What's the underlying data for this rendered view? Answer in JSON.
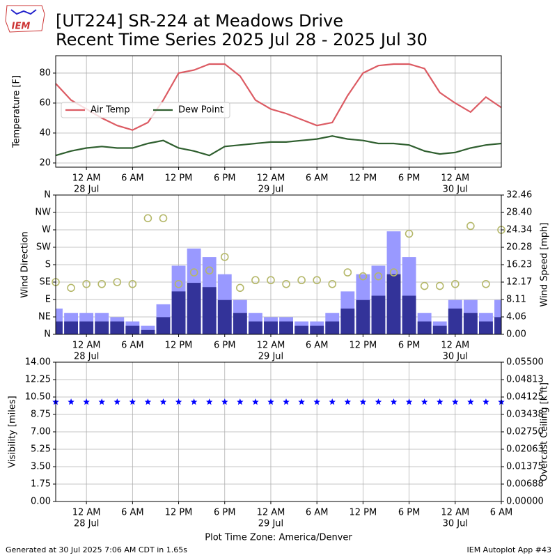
{
  "header": {
    "logo": "IEM",
    "title": "[UT224] SR-224 at Meadows Drive",
    "subtitle": "Recent Time Series 2025 Jul 28 - 2025 Jul 30"
  },
  "footer": {
    "left": "Generated at 30 Jul 2025 7:06 AM CDT in 1.65s",
    "right": "IEM Autoplot App #43"
  },
  "chart_data": [
    {
      "type": "line",
      "ylabel": "Temperature [F]",
      "grid": true,
      "legend": "center left",
      "x": [
        "2025-07-27T20:00",
        "2025-07-27T22:00",
        "2025-07-28T00:00",
        "2025-07-28T02:00",
        "2025-07-28T04:00",
        "2025-07-28T06:00",
        "2025-07-28T08:00",
        "2025-07-28T10:00",
        "2025-07-28T12:00",
        "2025-07-28T14:00",
        "2025-07-28T16:00",
        "2025-07-28T18:00",
        "2025-07-28T20:00",
        "2025-07-28T22:00",
        "2025-07-29T00:00",
        "2025-07-29T02:00",
        "2025-07-29T04:00",
        "2025-07-29T06:00",
        "2025-07-29T08:00",
        "2025-07-29T10:00",
        "2025-07-29T12:00",
        "2025-07-29T14:00",
        "2025-07-29T16:00",
        "2025-07-29T18:00",
        "2025-07-29T20:00",
        "2025-07-29T22:00",
        "2025-07-30T00:00",
        "2025-07-30T02:00",
        "2025-07-30T04:00",
        "2025-07-30T06:00"
      ],
      "series": [
        {
          "name": "Air Temp",
          "color": "#dc5b63",
          "values": [
            73,
            62,
            56,
            50,
            45,
            42,
            47,
            62,
            80,
            82,
            86,
            86,
            78,
            62,
            56,
            53,
            49,
            45,
            47,
            65,
            80,
            85,
            86,
            86,
            83,
            67,
            60,
            54,
            64,
            57
          ]
        },
        {
          "name": "Dew Point",
          "color": "#2f5f2f",
          "values": [
            25,
            28,
            30,
            31,
            30,
            30,
            33,
            35,
            30,
            28,
            25,
            31,
            32,
            33,
            34,
            34,
            35,
            36,
            38,
            36,
            35,
            33,
            33,
            32,
            28,
            26,
            27,
            30,
            32,
            33
          ]
        }
      ],
      "xlim": [
        "2025-07-27T20:00",
        "2025-07-30T06:00"
      ],
      "ylim": [
        17.2,
        91.6
      ],
      "yticks": [
        20,
        40,
        60,
        80
      ],
      "xticks": [
        {
          "value": "2025-07-28T00:00",
          "label": "12 AM"
        },
        {
          "value": "2025-07-28T06:00",
          "label": "6 AM"
        },
        {
          "value": "2025-07-28T12:00",
          "label": "12 PM"
        },
        {
          "value": "2025-07-28T18:00",
          "label": "6 PM"
        },
        {
          "value": "2025-07-29T00:00",
          "label": "12 AM"
        },
        {
          "value": "2025-07-29T06:00",
          "label": "6 AM"
        },
        {
          "value": "2025-07-29T12:00",
          "label": "12 PM"
        },
        {
          "value": "2025-07-29T18:00",
          "label": "6 PM"
        },
        {
          "value": "2025-07-30T00:00",
          "label": "12 AM"
        }
      ],
      "xtick_dates": [
        {
          "value": "2025-07-28T00:00",
          "label": "28 Jul"
        },
        {
          "value": "2025-07-29T00:00",
          "label": "29 Jul"
        },
        {
          "value": "2025-07-30T00:00",
          "label": "30 Jul"
        }
      ]
    },
    {
      "type": "mixed",
      "ylabel": "Wind Direction",
      "y2label": "Wind Speed [mph]",
      "grid": true,
      "x": [
        "2025-07-27T20:00",
        "2025-07-27T22:00",
        "2025-07-28T00:00",
        "2025-07-28T02:00",
        "2025-07-28T04:00",
        "2025-07-28T06:00",
        "2025-07-28T08:00",
        "2025-07-28T10:00",
        "2025-07-28T12:00",
        "2025-07-28T14:00",
        "2025-07-28T16:00",
        "2025-07-28T18:00",
        "2025-07-28T20:00",
        "2025-07-28T22:00",
        "2025-07-29T00:00",
        "2025-07-29T02:00",
        "2025-07-29T04:00",
        "2025-07-29T06:00",
        "2025-07-29T08:00",
        "2025-07-29T10:00",
        "2025-07-29T12:00",
        "2025-07-29T14:00",
        "2025-07-29T16:00",
        "2025-07-29T18:00",
        "2025-07-29T20:00",
        "2025-07-29T22:00",
        "2025-07-30T00:00",
        "2025-07-30T02:00",
        "2025-07-30T04:00",
        "2025-07-30T06:00"
      ],
      "series": [
        {
          "type": "bar",
          "axis": "y2",
          "color": "#9999ff",
          "values": [
            6,
            5,
            5,
            5,
            4,
            3,
            2,
            7,
            16,
            20,
            18,
            14,
            8,
            5,
            4,
            4,
            3,
            3,
            5,
            10,
            14,
            16,
            24,
            18,
            5,
            3,
            8,
            8,
            5,
            8
          ]
        },
        {
          "type": "bar",
          "axis": "y2",
          "color": "#333399",
          "values": [
            3,
            3,
            3,
            3,
            3,
            2,
            1,
            4,
            10,
            12,
            11,
            8,
            5,
            3,
            3,
            3,
            2,
            2,
            3,
            6,
            8,
            9,
            14,
            9,
            3,
            2,
            6,
            5,
            3,
            4
          ]
        },
        {
          "type": "scatter",
          "color": "#b5b86a",
          "values": [
            135,
            120,
            130,
            130,
            135,
            130,
            300,
            300,
            130,
            160,
            165,
            200,
            120,
            140,
            140,
            130,
            140,
            140,
            130,
            160,
            150,
            150,
            160,
            260,
            125,
            125,
            130,
            280,
            130,
            270
          ]
        }
      ],
      "xlim": [
        "2025-07-27T20:00",
        "2025-07-30T06:00"
      ],
      "ylim": [
        0,
        360
      ],
      "yticks": [
        {
          "value": 0,
          "label": "N"
        },
        {
          "value": 45,
          "label": "NE"
        },
        {
          "value": 90,
          "label": "E"
        },
        {
          "value": 135,
          "label": "SE"
        },
        {
          "value": 180,
          "label": "S"
        },
        {
          "value": 225,
          "label": "SW"
        },
        {
          "value": 270,
          "label": "W"
        },
        {
          "value": 315,
          "label": "NW"
        },
        {
          "value": 360,
          "label": "N"
        }
      ],
      "y2lim": [
        0,
        32.46
      ],
      "y2ticks": [
        {
          "value": 0,
          "label": "0.00"
        },
        {
          "value": 4.06,
          "label": "4.06"
        },
        {
          "value": 8.11,
          "label": "8.11"
        },
        {
          "value": 12.17,
          "label": "12.17"
        },
        {
          "value": 16.23,
          "label": "16.23"
        },
        {
          "value": 20.28,
          "label": "20.28"
        },
        {
          "value": 24.34,
          "label": "24.34"
        },
        {
          "value": 28.4,
          "label": "28.40"
        },
        {
          "value": 32.46,
          "label": "32.46"
        }
      ],
      "xticks": [
        {
          "value": "2025-07-28T00:00",
          "label": "12 AM"
        },
        {
          "value": "2025-07-28T06:00",
          "label": "6 AM"
        },
        {
          "value": "2025-07-28T12:00",
          "label": "12 PM"
        },
        {
          "value": "2025-07-28T18:00",
          "label": "6 PM"
        },
        {
          "value": "2025-07-29T00:00",
          "label": "12 AM"
        },
        {
          "value": "2025-07-29T06:00",
          "label": "6 AM"
        },
        {
          "value": "2025-07-29T12:00",
          "label": "12 PM"
        },
        {
          "value": "2025-07-29T18:00",
          "label": "6 PM"
        },
        {
          "value": "2025-07-30T00:00",
          "label": "12 AM"
        }
      ],
      "xtick_dates": [
        {
          "value": "2025-07-28T00:00",
          "label": "28 Jul"
        },
        {
          "value": "2025-07-29T00:00",
          "label": "29 Jul"
        },
        {
          "value": "2025-07-30T00:00",
          "label": "30 Jul"
        }
      ]
    },
    {
      "type": "scatter",
      "ylabel": "Visibility [miles]",
      "y2label": "Overcast Ceiling [k ft]",
      "y2label_color": "#008000",
      "xlabel": "Plot Time Zone: America/Denver",
      "grid": true,
      "x": [
        "2025-07-27T20:00",
        "2025-07-27T22:00",
        "2025-07-28T00:00",
        "2025-07-28T02:00",
        "2025-07-28T04:00",
        "2025-07-28T06:00",
        "2025-07-28T08:00",
        "2025-07-28T10:00",
        "2025-07-28T12:00",
        "2025-07-28T14:00",
        "2025-07-28T16:00",
        "2025-07-28T18:00",
        "2025-07-28T20:00",
        "2025-07-28T22:00",
        "2025-07-29T00:00",
        "2025-07-29T02:00",
        "2025-07-29T04:00",
        "2025-07-29T06:00",
        "2025-07-29T08:00",
        "2025-07-29T10:00",
        "2025-07-29T12:00",
        "2025-07-29T14:00",
        "2025-07-29T16:00",
        "2025-07-29T18:00",
        "2025-07-29T20:00",
        "2025-07-29T22:00",
        "2025-07-30T00:00",
        "2025-07-30T02:00",
        "2025-07-30T04:00",
        "2025-07-30T06:00"
      ],
      "series": [
        {
          "type": "star",
          "color": "#0000ff",
          "values": [
            10,
            10,
            10,
            10,
            10,
            10,
            10,
            10,
            10,
            10,
            10,
            10,
            10,
            10,
            10,
            10,
            10,
            10,
            10,
            10,
            10,
            10,
            10,
            10,
            10,
            10,
            10,
            10,
            10,
            10
          ]
        }
      ],
      "xlim": [
        "2025-07-27T20:00",
        "2025-07-30T06:00"
      ],
      "ylim": [
        0,
        14
      ],
      "yticks": [
        {
          "value": 0,
          "label": "0.00"
        },
        {
          "value": 1.75,
          "label": "1.75"
        },
        {
          "value": 3.5,
          "label": "3.50"
        },
        {
          "value": 5.25,
          "label": "5.25"
        },
        {
          "value": 7,
          "label": "7.00"
        },
        {
          "value": 8.75,
          "label": "8.75"
        },
        {
          "value": 10.5,
          "label": "10.50"
        },
        {
          "value": 12.25,
          "label": "12.25"
        },
        {
          "value": 14,
          "label": "14.00"
        }
      ],
      "y2lim": [
        0,
        0.055
      ],
      "y2ticks": [
        {
          "value": 0,
          "label": "0.00000"
        },
        {
          "value": 0.006875,
          "label": "0.00688"
        },
        {
          "value": 0.01375,
          "label": "0.01375"
        },
        {
          "value": 0.020625,
          "label": "0.02063"
        },
        {
          "value": 0.0275,
          "label": "0.02750"
        },
        {
          "value": 0.034375,
          "label": "0.03438"
        },
        {
          "value": 0.04125,
          "label": "0.04125"
        },
        {
          "value": 0.048125,
          "label": "0.04813"
        },
        {
          "value": 0.055,
          "label": "0.05500"
        }
      ],
      "xticks": [
        {
          "value": "2025-07-28T00:00",
          "label": "12 AM"
        },
        {
          "value": "2025-07-28T06:00",
          "label": "6 AM"
        },
        {
          "value": "2025-07-28T12:00",
          "label": "12 PM"
        },
        {
          "value": "2025-07-28T18:00",
          "label": "6 PM"
        },
        {
          "value": "2025-07-29T00:00",
          "label": "12 AM"
        },
        {
          "value": "2025-07-29T06:00",
          "label": "6 AM"
        },
        {
          "value": "2025-07-29T12:00",
          "label": "12 PM"
        },
        {
          "value": "2025-07-29T18:00",
          "label": "6 PM"
        },
        {
          "value": "2025-07-30T00:00",
          "label": "12 AM"
        },
        {
          "value": "2025-07-30T06:00",
          "label": "6 AM"
        }
      ],
      "xtick_dates": [
        {
          "value": "2025-07-28T00:00",
          "label": "28 Jul"
        },
        {
          "value": "2025-07-29T00:00",
          "label": "29 Jul"
        },
        {
          "value": "2025-07-30T00:00",
          "label": "30 Jul"
        }
      ]
    }
  ]
}
